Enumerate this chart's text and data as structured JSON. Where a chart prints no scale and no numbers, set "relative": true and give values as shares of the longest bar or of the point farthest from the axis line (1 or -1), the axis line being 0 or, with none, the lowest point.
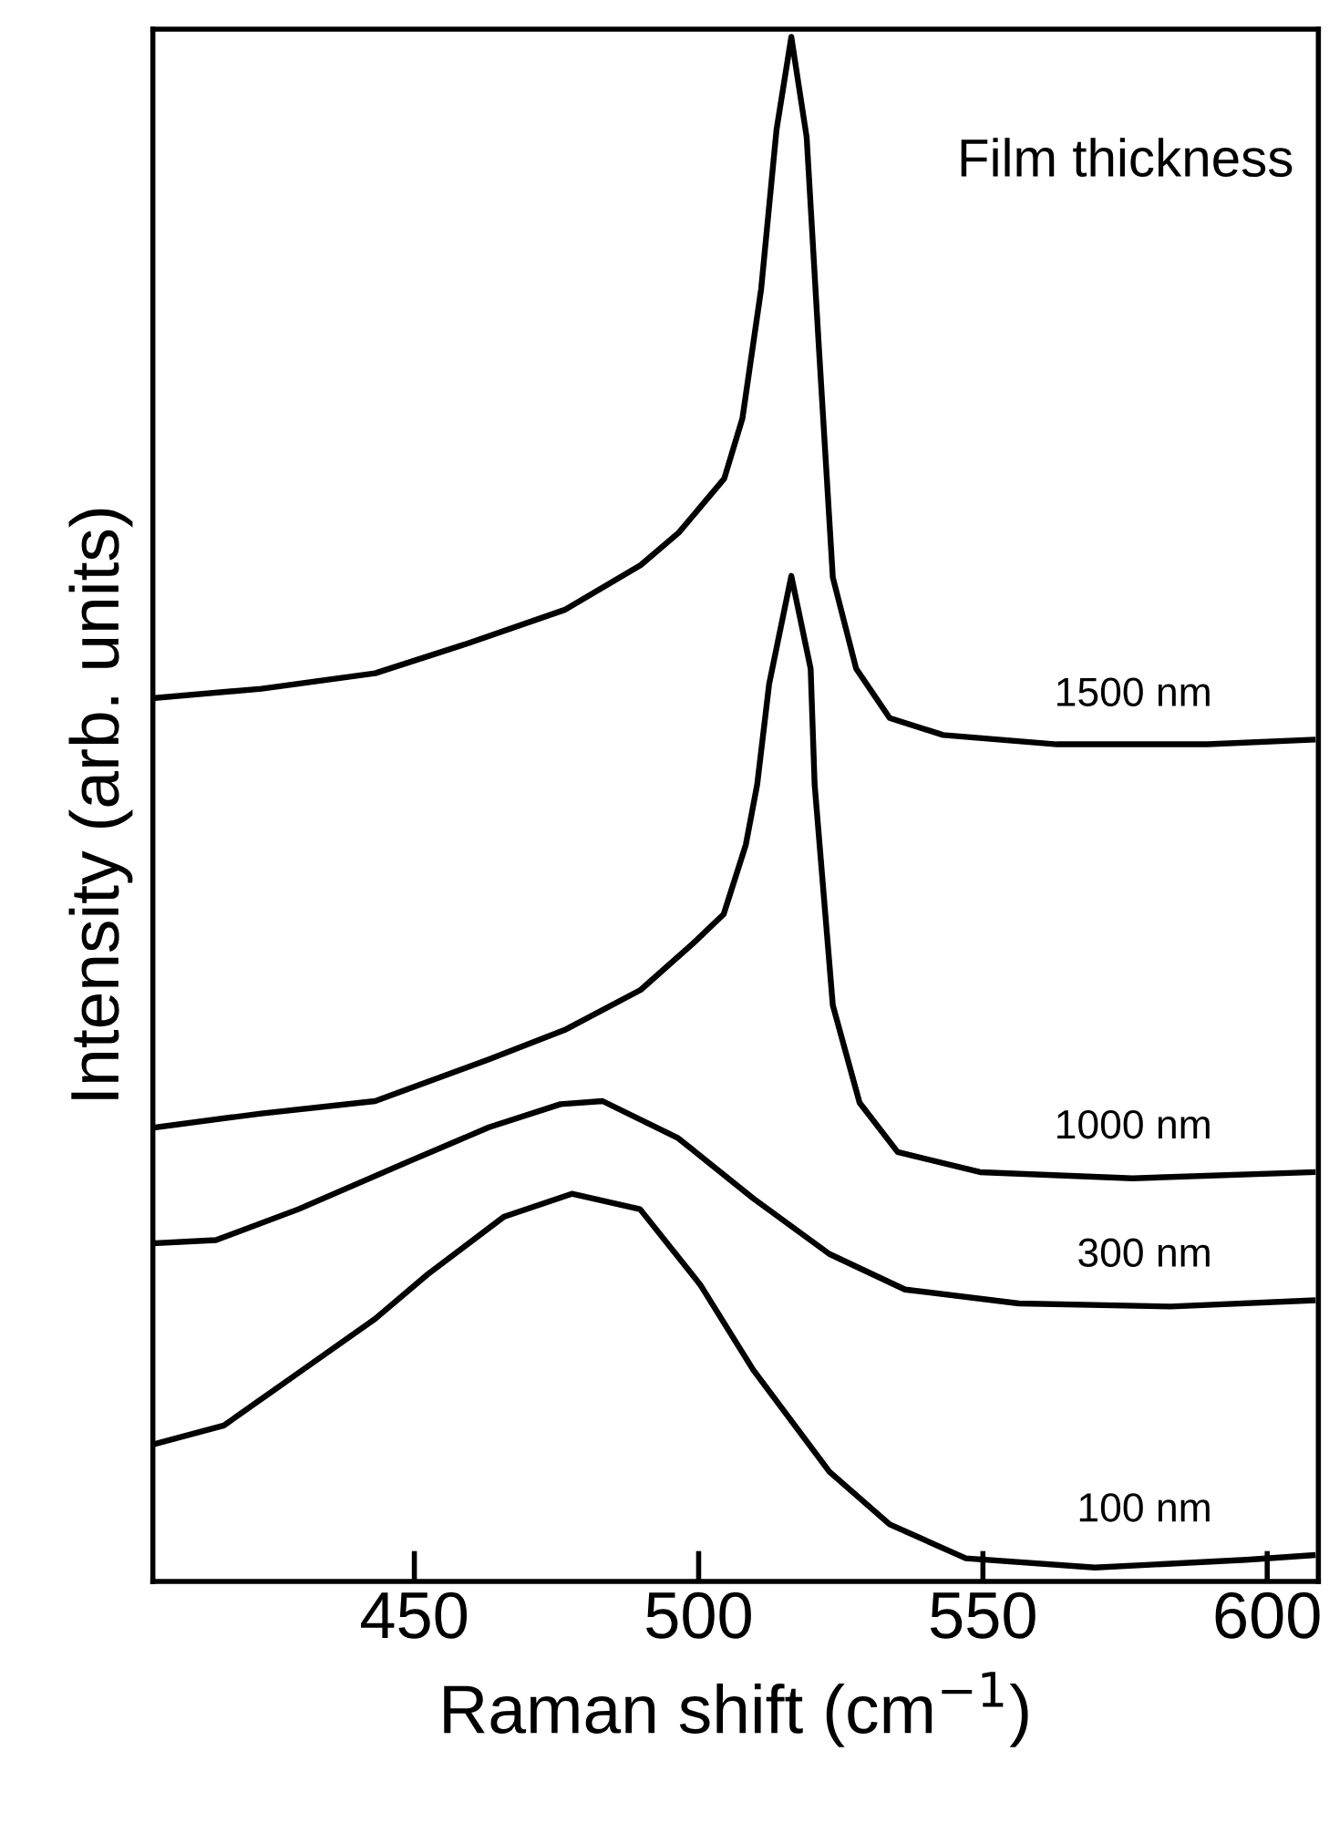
{
  "chart_data": {
    "type": "line",
    "relative": true,
    "xlabel": "Raman shift (cm$^{−1}$)",
    "ylabel": "Intensity (arb. units)",
    "legend_title": "Film thickness",
    "xlim": [
      404,
      609
    ],
    "xticks": [
      450,
      500,
      550,
      600
    ],
    "grid": false,
    "legend": false,
    "tick_labels": "x",
    "series": [
      {
        "name": "1500 nm",
        "color": "#000000",
        "x": [
          404.4,
          423.1,
          443.1,
          459.1,
          476.4,
          489.8,
          496.5,
          504.5,
          507.7,
          511.0,
          513.7,
          516.3,
          519.0,
          521.1,
          523.6,
          527.7,
          533.6,
          543.0,
          563.0,
          589.5,
          608.0
        ],
        "values": [
          0.572,
          0.578,
          0.588,
          0.607,
          0.629,
          0.658,
          0.679,
          0.714,
          0.753,
          0.837,
          0.94,
          1.0,
          0.935,
          0.802,
          0.65,
          0.591,
          0.559,
          0.548,
          0.542,
          0.542,
          0.545
        ]
      },
      {
        "name": "1000 nm",
        "color": "#000000",
        "x": [
          404.4,
          423.1,
          443.1,
          463.1,
          476.4,
          489.8,
          499.0,
          504.4,
          508.3,
          510.3,
          512.4,
          516.3,
          519.7,
          520.4,
          523.6,
          528.3,
          535.0,
          549.5,
          576.3,
          608.0
        ],
        "values": [
          0.294,
          0.303,
          0.311,
          0.338,
          0.357,
          0.383,
          0.413,
          0.432,
          0.477,
          0.516,
          0.581,
          0.651,
          0.591,
          0.516,
          0.373,
          0.31,
          0.278,
          0.265,
          0.261,
          0.265
        ]
      },
      {
        "name": "300 nm",
        "color": "#000000",
        "x": [
          404.4,
          415.1,
          429.6,
          449.7,
          463.1,
          475.7,
          483.1,
          496.4,
          509.6,
          523.0,
          536.3,
          556.3,
          583.0,
          608.0
        ],
        "values": [
          0.219,
          0.221,
          0.241,
          0.273,
          0.294,
          0.309,
          0.311,
          0.287,
          0.248,
          0.212,
          0.189,
          0.18,
          0.178,
          0.182
        ]
      },
      {
        "name": "100 nm",
        "color": "#000000",
        "x": [
          404.4,
          416.5,
          429.6,
          443.1,
          452.4,
          465.7,
          477.7,
          489.7,
          500.3,
          509.6,
          523.0,
          533.6,
          547.0,
          569.7,
          596.3,
          608.0
        ],
        "values": [
          0.089,
          0.101,
          0.135,
          0.17,
          0.199,
          0.236,
          0.251,
          0.241,
          0.192,
          0.137,
          0.071,
          0.037,
          0.015,
          0.009,
          0.014,
          0.017
        ]
      }
    ]
  }
}
